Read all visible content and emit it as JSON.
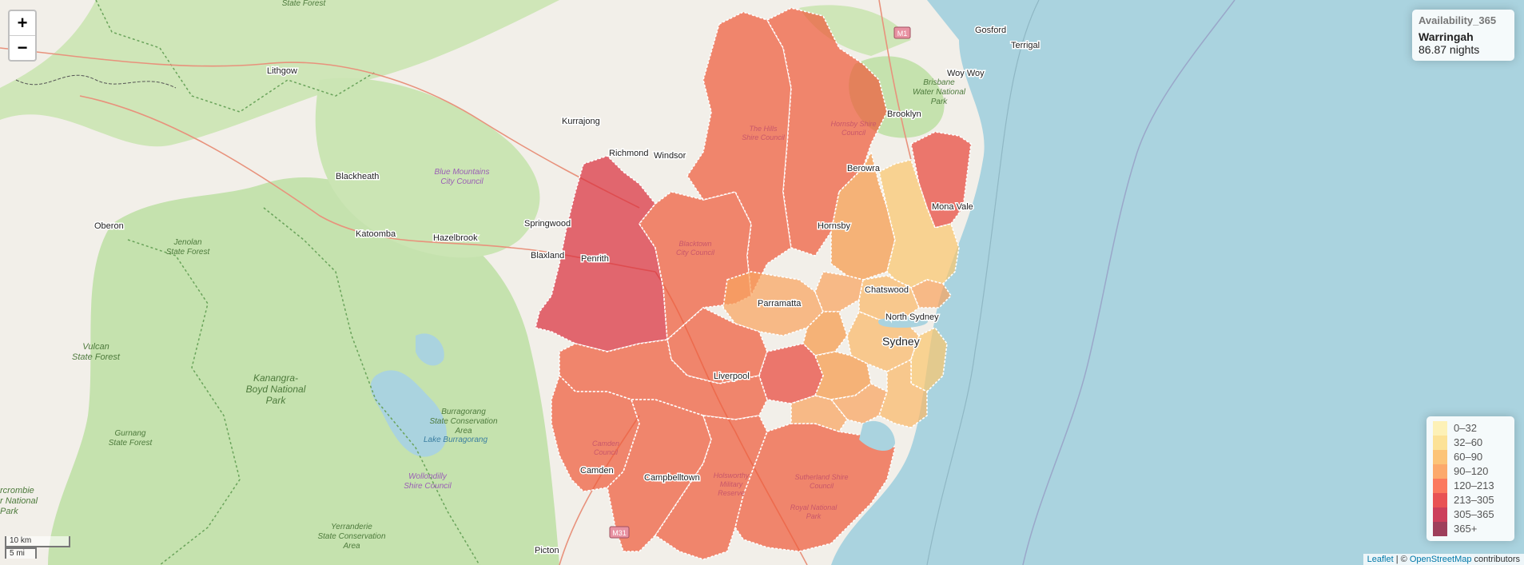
{
  "zoom": {
    "in_label": "+",
    "out_label": "−"
  },
  "info": {
    "title": "Availability_365",
    "area": "Warringah",
    "value": "86.87 nights"
  },
  "legend": [
    {
      "label": "0–32",
      "color": "#FFEDA0"
    },
    {
      "label": "32–60",
      "color": "#FED976"
    },
    {
      "label": "60–90",
      "color": "#FEB24C"
    },
    {
      "label": "90–120",
      "color": "#FD8D3C"
    },
    {
      "label": "120–213",
      "color": "#FC4E2A"
    },
    {
      "label": "213–305",
      "color": "#E31A1C"
    },
    {
      "label": "305–365",
      "color": "#BD0026"
    },
    {
      "label": "365+",
      "color": "#800026"
    }
  ],
  "attribution": {
    "leaflet": "Leaflet",
    "sep": " | © ",
    "osm": "OpenStreetMap",
    "suffix": " contributors"
  },
  "scale": {
    "km": "10 km",
    "mi": "5 mi"
  },
  "places": {
    "gosford": "Gosford",
    "terrigal": "Terrigal",
    "woy_woy": "Woy Woy",
    "brooklyn": "Brooklyn",
    "lithgow": "Lithgow",
    "kurrajong": "Kurrajong",
    "richmond": "Richmond",
    "windsor": "Windsor",
    "blackheath": "Blackheath",
    "oberon": "Oberon",
    "katoomba": "Katoomba",
    "hazelbrook": "Hazelbrook",
    "springwood": "Springwood",
    "blaxland": "Blaxland",
    "penrith": "Penrith",
    "parramatta": "Parramatta",
    "liverpool": "Liverpool",
    "camden": "Camden",
    "campbelltown": "Campbelltown",
    "picton": "Picton",
    "berowra": "Berowra",
    "hornsby": "Hornsby",
    "mona_vale": "Mona Vale",
    "sydney": "Sydney",
    "chatswood": "Chatswood",
    "north_sydney": "North Sydney"
  },
  "parks": {
    "blue_mountains": "Blue Mountains\nCity Council",
    "jenolan": "Jenolan\nState Forest",
    "vulcan": "Vulcan\nState Forest",
    "kanangra": "Kanangra-\nBoyd National\nPark",
    "gurnang": "Gurnang\nState Forest",
    "burragorang": "Burragorang\nState Conservation\nArea",
    "lake_burragorang": "Lake Burragorang",
    "wollondilly": "Wollondilly\nShire Council",
    "yerranderie": "Yerranderie\nState Conservation\nArea",
    "abercrombie": "rcrombie\nr National\nPark",
    "brisbane_water": "Brisbane\nWater National\nPark",
    "state_forest": "State Forest",
    "hills_shire": "The Hills\nShire Council",
    "hornsby_shire": "Hornsby Shire\nCouncil",
    "blacktown": "Blacktown\nCity Council",
    "camden_council": "Camden\nCouncil",
    "holsworthy": "Holsworthy\nMilitary\nReserve",
    "sutherland": "Sutherland Shire\nCouncil",
    "royal": "Royal National\nPark"
  },
  "shields": {
    "m1": "M1",
    "m31": "M31"
  }
}
